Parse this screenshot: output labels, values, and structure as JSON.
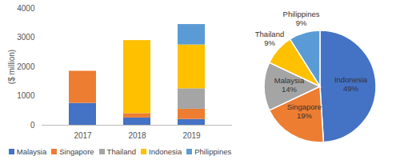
{
  "chart_data": [
    {
      "type": "bar",
      "stacked": true,
      "categories": [
        "2017",
        "2018",
        "2019"
      ],
      "ylabel": "($ million)",
      "ylim": [
        0,
        4000
      ],
      "yticks": [
        0,
        1000,
        2000,
        3000,
        4000
      ],
      "grid": false,
      "legend": "bottom",
      "series": [
        {
          "name": "Malaysia",
          "color": "#4472C4",
          "values": [
            750,
            250,
            200
          ]
        },
        {
          "name": "Singapore",
          "color": "#ED7D31",
          "values": [
            1100,
            150,
            350
          ]
        },
        {
          "name": "Thailand",
          "color": "#A5A5A5",
          "values": [
            0,
            0,
            700
          ]
        },
        {
          "name": "Indonesia",
          "color": "#FFC000",
          "values": [
            0,
            2500,
            1500
          ]
        },
        {
          "name": "Philippines",
          "color": "#5B9BD5",
          "values": [
            0,
            0,
            700
          ]
        }
      ]
    },
    {
      "type": "pie",
      "categories": [
        "Indonesia",
        "Singapore",
        "Malaysia",
        "Thailand",
        "Philippines"
      ],
      "values": [
        49,
        19,
        14,
        9,
        9
      ],
      "value_labels": [
        "49%",
        "19%",
        "14%",
        "9%",
        "9%"
      ],
      "colors": [
        "#4472C4",
        "#ED7D31",
        "#A5A5A5",
        "#FFC000",
        "#5B9BD5"
      ],
      "data_labels": true
    }
  ]
}
